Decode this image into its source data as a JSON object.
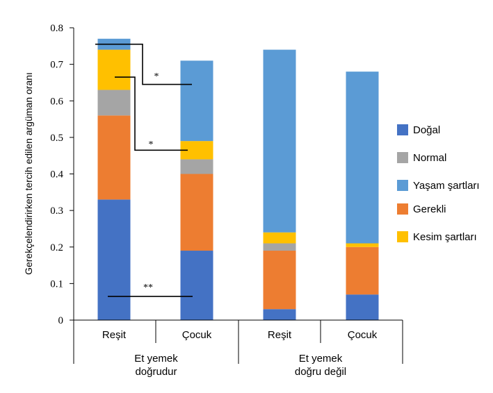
{
  "chart_data": {
    "type": "bar",
    "stacked": true,
    "title": "",
    "xlabel": "",
    "ylabel": "Gerekçelendirirken tercih edilen argüman oranı",
    "ylim": [
      0,
      0.8
    ],
    "yticks": [
      "0",
      "0.1",
      "0.2",
      "0.3",
      "0.4",
      "0.5",
      "0.6",
      "0.7",
      "0.8"
    ],
    "categories": [
      "Reşit",
      "Çocuk",
      "Reşit",
      "Çocuk"
    ],
    "groups": [
      {
        "label_line1": "Et yemek",
        "label_line2": "doğrudur",
        "categories": [
          0,
          1
        ]
      },
      {
        "label_line1": "Et yemek",
        "label_line2": "doğru değil",
        "categories": [
          2,
          3
        ]
      }
    ],
    "series": [
      {
        "name": "Doğal",
        "color": "#4472C4",
        "values": [
          0.33,
          0.19,
          0.03,
          0.07
        ]
      },
      {
        "name": "Gerekli",
        "color": "#ED7D31",
        "values": [
          0.23,
          0.21,
          0.16,
          0.13
        ]
      },
      {
        "name": "Normal",
        "color": "#A5A5A5",
        "values": [
          0.07,
          0.04,
          0.02,
          0.0
        ]
      },
      {
        "name": "Kesim şartları",
        "color": "#FFC000",
        "values": [
          0.11,
          0.05,
          0.03,
          0.01
        ]
      },
      {
        "name": "Yaşam şartları",
        "color": "#5B9BD5",
        "values": [
          0.03,
          0.22,
          0.5,
          0.47
        ]
      }
    ],
    "legend_order": [
      "Doğal",
      "Normal",
      "Yaşam şartları",
      "Gerekli",
      "Kesim şartları"
    ],
    "legend_position": "right",
    "annotations": [
      {
        "label": "*",
        "from_category": 0,
        "to_category": 1,
        "from_value": 0.755,
        "to_value": 0.645
      },
      {
        "label": "*",
        "from_category": 0,
        "to_category": 1,
        "from_value": 0.665,
        "to_value": 0.465
      },
      {
        "label": "**",
        "from_category": 0,
        "to_category": 1,
        "from_value": 0.065,
        "to_value": 0.065
      }
    ]
  }
}
